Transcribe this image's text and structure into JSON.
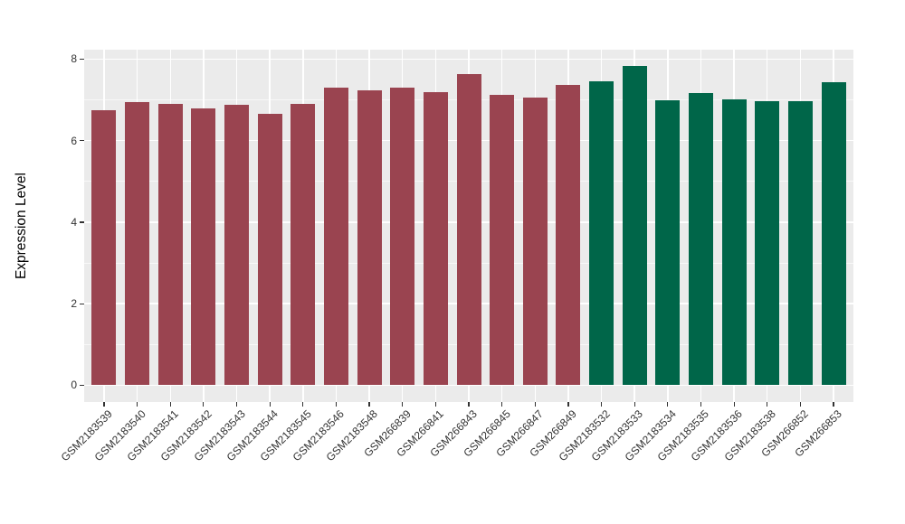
{
  "chart_data": {
    "type": "bar",
    "title": "",
    "xlabel": "",
    "ylabel": "Expression Level",
    "ylim": [
      0,
      8
    ],
    "yticks": [
      0,
      2,
      4,
      6,
      8
    ],
    "y_minor_gridlines": [
      1,
      3,
      5,
      7
    ],
    "grid": "white major and minor gridlines on light-gray panel (ggplot theme)",
    "legend_position": "none",
    "x_tick_label_rotation_deg": 45,
    "categories": [
      "GSM2183539",
      "GSM2183540",
      "GSM2183541",
      "GSM2183542",
      "GSM2183543",
      "GSM2183544",
      "GSM2183545",
      "GSM2183546",
      "GSM2183548",
      "GSM266839",
      "GSM266841",
      "GSM266843",
      "GSM266845",
      "GSM266847",
      "GSM266849",
      "GSM2183532",
      "GSM2183533",
      "GSM2183534",
      "GSM2183535",
      "GSM2183536",
      "GSM2183538",
      "GSM266852",
      "GSM266853"
    ],
    "series": [
      {
        "name": "Expression Level",
        "values": [
          6.75,
          6.95,
          6.91,
          6.8,
          6.88,
          6.66,
          6.89,
          7.3,
          7.24,
          7.31,
          7.18,
          7.64,
          7.13,
          7.05,
          7.36,
          7.46,
          7.83,
          6.98,
          7.16,
          7.02,
          6.96,
          6.96,
          7.44
        ]
      }
    ],
    "groups": [
      "group1",
      "group1",
      "group1",
      "group1",
      "group1",
      "group1",
      "group1",
      "group1",
      "group1",
      "group1",
      "group1",
      "group1",
      "group1",
      "group1",
      "group1",
      "group2",
      "group2",
      "group2",
      "group2",
      "group2",
      "group2",
      "group2",
      "group2"
    ],
    "group_colors": {
      "group1": "#9A4450",
      "group2": "#006649"
    },
    "style": {
      "figure_background": "#FFFFFF",
      "panel_background": "#EBEBEB",
      "gridline_color": "#FFFFFF",
      "axis_text_color": "#333333",
      "axis_title_color": "#000000"
    }
  }
}
